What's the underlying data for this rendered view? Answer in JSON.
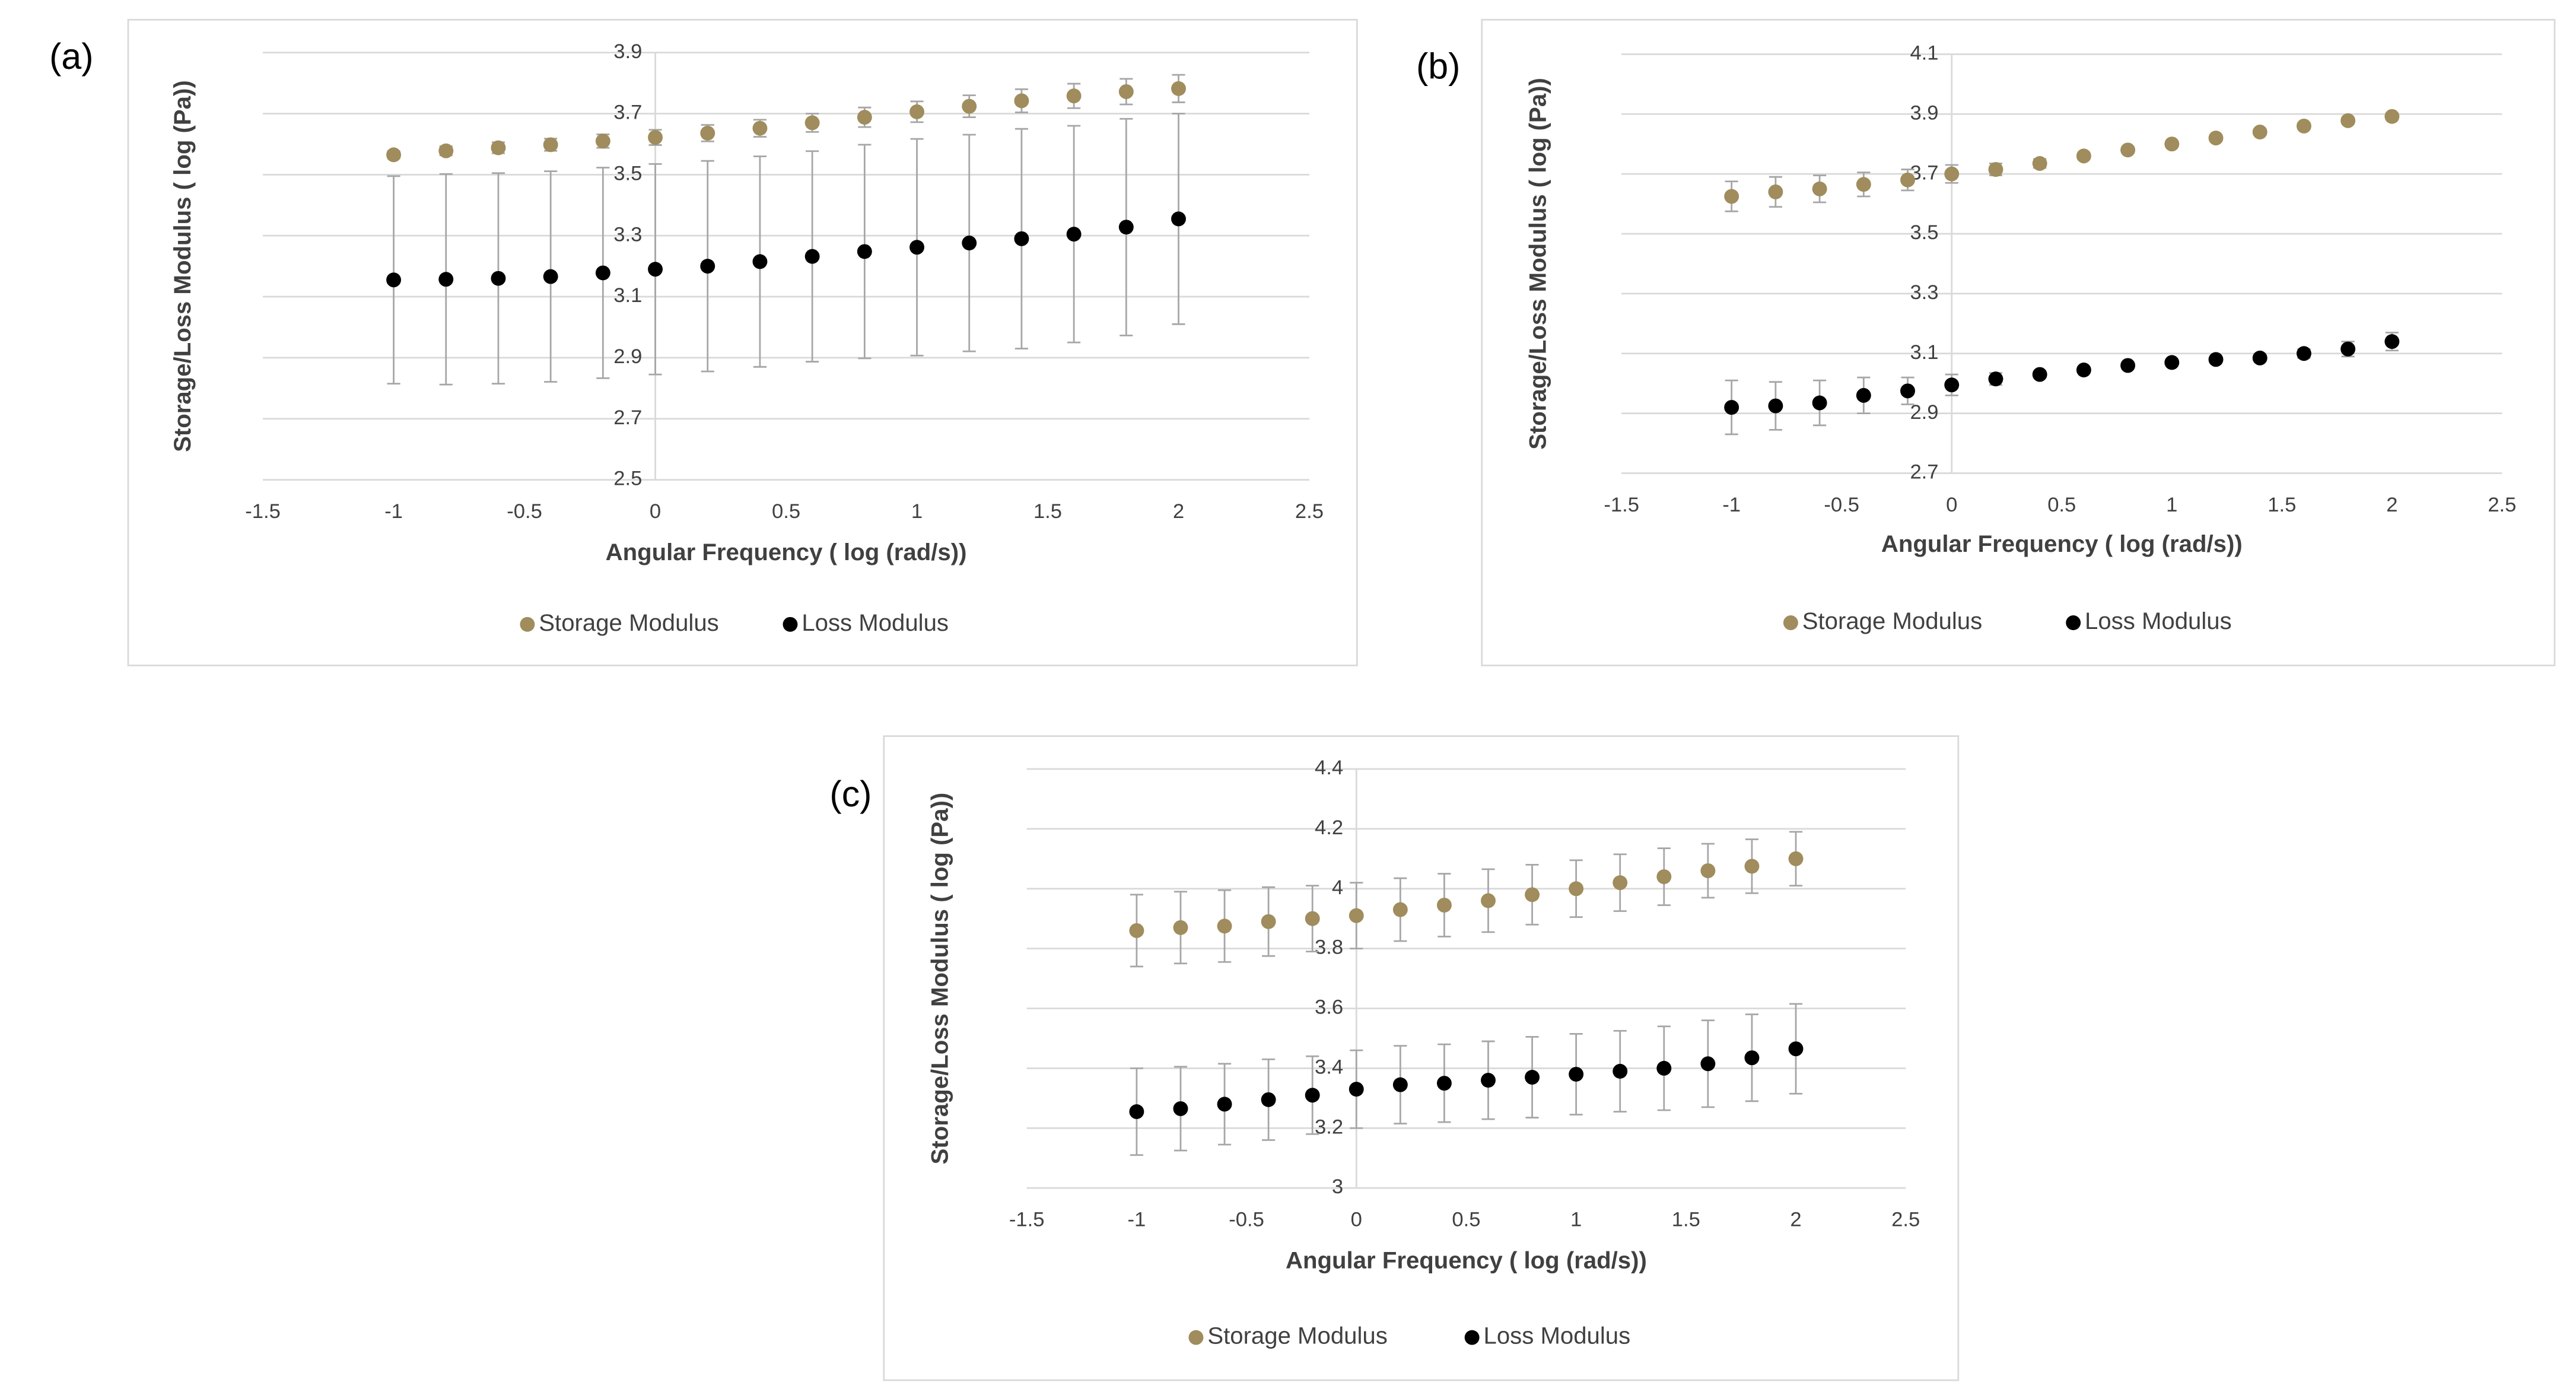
{
  "chart_data": [
    {
      "type": "scatter",
      "label": "(a)",
      "x_label": "Angular Frequency ( log (rad/s))",
      "y_label": "Storage/Loss Modulus ( log (Pa))",
      "x": [
        -1,
        -0.8,
        -0.6,
        -0.4,
        -0.2,
        0,
        0.2,
        0.4,
        0.6,
        0.8,
        1,
        1.2,
        1.4,
        1.6,
        1.8,
        2
      ],
      "series": [
        {
          "name": "Storage Modulus",
          "color": "#a08c5c",
          "values": [
            3.565,
            3.578,
            3.588,
            3.598,
            3.61,
            3.622,
            3.636,
            3.652,
            3.67,
            3.688,
            3.706,
            3.724,
            3.742,
            3.758,
            3.772,
            3.782
          ],
          "errors": [
            0.012,
            0.015,
            0.018,
            0.02,
            0.022,
            0.025,
            0.027,
            0.028,
            0.03,
            0.032,
            0.034,
            0.036,
            0.038,
            0.04,
            0.042,
            0.045
          ]
        },
        {
          "name": "Loss Modulus",
          "color": "#000000",
          "values": [
            3.155,
            3.157,
            3.16,
            3.166,
            3.178,
            3.19,
            3.2,
            3.215,
            3.232,
            3.248,
            3.262,
            3.276,
            3.29,
            3.305,
            3.328,
            3.355
          ],
          "errors": [
            0.34,
            0.345,
            0.345,
            0.345,
            0.345,
            0.345,
            0.345,
            0.345,
            0.345,
            0.35,
            0.355,
            0.355,
            0.36,
            0.355,
            0.355,
            0.345
          ]
        }
      ],
      "xlim": [
        -1.5,
        2.5
      ],
      "xticks": [
        -1.5,
        -1,
        -0.5,
        0,
        0.5,
        1,
        1.5,
        2,
        2.5
      ],
      "ylim": [
        2.5,
        3.9
      ],
      "yticks": [
        2.5,
        2.7,
        2.9,
        3.1,
        3.3,
        3.5,
        3.7,
        3.9
      ],
      "grid": true,
      "legend": "bottom"
    },
    {
      "type": "scatter",
      "label": "(b)",
      "x_label": "Angular Frequency ( log (rad/s))",
      "y_label": "Storage/Loss Modulus ( log (Pa))",
      "x": [
        -1,
        -0.8,
        -0.6,
        -0.4,
        -0.2,
        0,
        0.2,
        0.4,
        0.6,
        0.8,
        1,
        1.2,
        1.4,
        1.6,
        1.8,
        2
      ],
      "series": [
        {
          "name": "Storage Modulus",
          "color": "#a08c5c",
          "values": [
            3.625,
            3.64,
            3.65,
            3.665,
            3.68,
            3.7,
            3.715,
            3.735,
            3.76,
            3.78,
            3.8,
            3.82,
            3.84,
            3.86,
            3.878,
            3.892
          ],
          "errors": [
            0.05,
            0.05,
            0.045,
            0.04,
            0.035,
            0.03,
            0.02,
            0.015,
            0.01,
            0.01,
            0.01,
            0.01,
            0.01,
            0.01,
            0.01,
            0.01
          ]
        },
        {
          "name": "Loss Modulus",
          "color": "#000000",
          "values": [
            2.92,
            2.925,
            2.935,
            2.96,
            2.975,
            2.995,
            3.015,
            3.03,
            3.045,
            3.06,
            3.07,
            3.08,
            3.085,
            3.1,
            3.115,
            3.14
          ],
          "errors": [
            0.09,
            0.08,
            0.075,
            0.06,
            0.045,
            0.035,
            0.02,
            0.01,
            0.01,
            0.01,
            0.01,
            0.01,
            0.01,
            0.015,
            0.025,
            0.03
          ]
        }
      ],
      "xlim": [
        -1.5,
        2.5
      ],
      "xticks": [
        -1.5,
        -1,
        -0.5,
        0,
        0.5,
        1,
        1.5,
        2,
        2.5
      ],
      "ylim": [
        2.7,
        4.1
      ],
      "yticks": [
        2.7,
        2.9,
        3.1,
        3.3,
        3.5,
        3.7,
        3.9,
        4.1
      ],
      "grid": true,
      "legend": "bottom"
    },
    {
      "type": "scatter",
      "label": "(c)",
      "x_label": "Angular Frequency ( log (rad/s))",
      "y_label": "Storage/Loss Modulus ( log (Pa))",
      "x": [
        -1,
        -0.8,
        -0.6,
        -0.4,
        -0.2,
        0,
        0.2,
        0.4,
        0.6,
        0.8,
        1,
        1.2,
        1.4,
        1.6,
        1.8,
        2
      ],
      "series": [
        {
          "name": "Storage Modulus",
          "color": "#a08c5c",
          "values": [
            3.86,
            3.87,
            3.875,
            3.89,
            3.9,
            3.91,
            3.93,
            3.945,
            3.96,
            3.98,
            4.0,
            4.02,
            4.04,
            4.06,
            4.075,
            4.1
          ],
          "errors": [
            0.12,
            0.12,
            0.12,
            0.115,
            0.11,
            0.11,
            0.105,
            0.105,
            0.105,
            0.1,
            0.095,
            0.095,
            0.095,
            0.09,
            0.09,
            0.09
          ]
        },
        {
          "name": "Loss Modulus",
          "color": "#000000",
          "values": [
            3.255,
            3.265,
            3.28,
            3.295,
            3.31,
            3.33,
            3.345,
            3.35,
            3.36,
            3.37,
            3.38,
            3.39,
            3.4,
            3.415,
            3.435,
            3.465
          ],
          "errors": [
            0.145,
            0.14,
            0.135,
            0.135,
            0.13,
            0.13,
            0.13,
            0.13,
            0.13,
            0.135,
            0.135,
            0.135,
            0.14,
            0.145,
            0.145,
            0.15
          ]
        }
      ],
      "xlim": [
        -1.5,
        2.5
      ],
      "xticks": [
        -1.5,
        -1,
        -0.5,
        0,
        0.5,
        1,
        1.5,
        2,
        2.5
      ],
      "ylim": [
        3,
        4.4
      ],
      "yticks": [
        3,
        3.2,
        3.4,
        3.6,
        3.8,
        4,
        4.2,
        4.4
      ],
      "grid": true,
      "legend": "bottom"
    }
  ]
}
